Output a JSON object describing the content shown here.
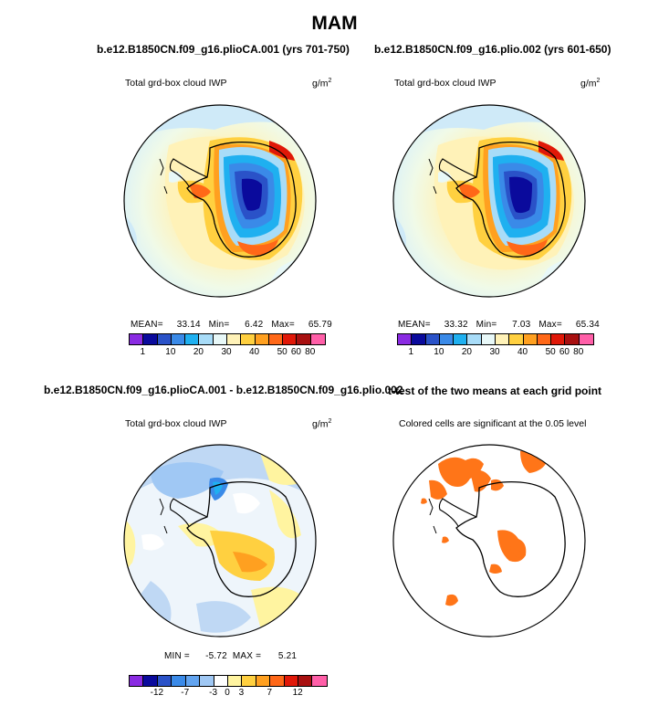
{
  "page_title": "MAM",
  "panels": {
    "tl": {
      "case": "b.e12.B1850CN.f09_g16.plioCA.001 (yrs 701-750)",
      "variable": "Total grd-box cloud IWP",
      "units_base": "g/m",
      "units_exp": "2",
      "stats": {
        "mean_label": "MEAN=",
        "mean": "33.14",
        "min_label": "Min=",
        "min": "6.42",
        "max_label": "Max=",
        "max": "65.79"
      }
    },
    "tr": {
      "case": "b.e12.B1850CN.f09_g16.plio.002 (yrs 601-650)",
      "variable": "Total grd-box cloud IWP",
      "units_base": "g/m",
      "units_exp": "2",
      "stats": {
        "mean_label": "MEAN=",
        "mean": "33.32",
        "min_label": "Min=",
        "min": "7.03",
        "max_label": "Max=",
        "max": "65.34"
      }
    },
    "bl": {
      "case": "b.e12.B1850CN.f09_g16.plioCA.001 - b.e12.B1850CN.f09_g16.plio.002",
      "variable": "Total grd-box cloud IWP",
      "units_base": "g/m",
      "units_exp": "2",
      "stats": {
        "min_label": "MIN =",
        "min": "-5.72",
        "max_label": "MAX =",
        "max": "5.21"
      }
    },
    "br": {
      "case": "t-test of the two means at each grid point",
      "subtitle": "Colored cells are significant at the 0.05 level"
    }
  },
  "colorbars": {
    "field": {
      "colors": [
        "#8a2be2",
        "#0a0a9c",
        "#2a52c8",
        "#3a8ae8",
        "#1fb0f0",
        "#a8dcf8",
        "#e8f8f8",
        "#fff2b8",
        "#ffd040",
        "#ffa020",
        "#ff6818",
        "#e01808",
        "#a81010",
        "#ff5fa8"
      ],
      "tick_labels": [
        "1",
        "10",
        "20",
        "30",
        "40",
        "50",
        "60",
        "80"
      ]
    },
    "diff": {
      "colors": [
        "#8a2be2",
        "#0a0a9c",
        "#2a52c8",
        "#3a8ae8",
        "#62a4f0",
        "#a0c8f4",
        "#ffffff",
        "#fff4a0",
        "#ffd040",
        "#ffa020",
        "#ff6818",
        "#e01808",
        "#a81010",
        "#ff5fa8"
      ],
      "tick_labels": [
        "-12",
        "-7",
        "-3",
        "0",
        "3",
        "7",
        "12"
      ]
    }
  },
  "chart_data": [
    {
      "type": "heatmap",
      "title": "Total grd-box cloud IWP",
      "subtitle": "b.e12.B1850CN.f09_g16.plioCA.001 (yrs 701-750)",
      "units": "g/m2",
      "projection": "south polar stereographic",
      "levels": [
        1,
        5,
        10,
        15,
        20,
        25,
        30,
        35,
        40,
        45,
        50,
        60,
        70,
        80
      ],
      "stats": {
        "mean": 33.14,
        "min": 6.42,
        "max": 65.79
      }
    },
    {
      "type": "heatmap",
      "title": "Total grd-box cloud IWP",
      "subtitle": "b.e12.B1850CN.f09_g16.plio.002 (yrs 601-650)",
      "units": "g/m2",
      "projection": "south polar stereographic",
      "levels": [
        1,
        5,
        10,
        15,
        20,
        25,
        30,
        35,
        40,
        45,
        50,
        60,
        70,
        80
      ],
      "stats": {
        "mean": 33.32,
        "min": 7.03,
        "max": 65.34
      }
    },
    {
      "type": "heatmap",
      "title": "Total grd-box cloud IWP",
      "subtitle": "b.e12.B1850CN.f09_g16.plioCA.001 - b.e12.B1850CN.f09_g16.plio.002",
      "units": "g/m2",
      "projection": "south polar stereographic",
      "levels": [
        -12,
        -9,
        -7,
        -5,
        -3,
        -1,
        0,
        1,
        3,
        5,
        7,
        9,
        12
      ],
      "stats": {
        "min": -5.72,
        "max": 5.21
      }
    },
    {
      "type": "heatmap",
      "title": "t-test of the two means at each grid point",
      "subtitle": "Colored cells are significant at the 0.05 level",
      "significance_level": 0.05
    }
  ]
}
